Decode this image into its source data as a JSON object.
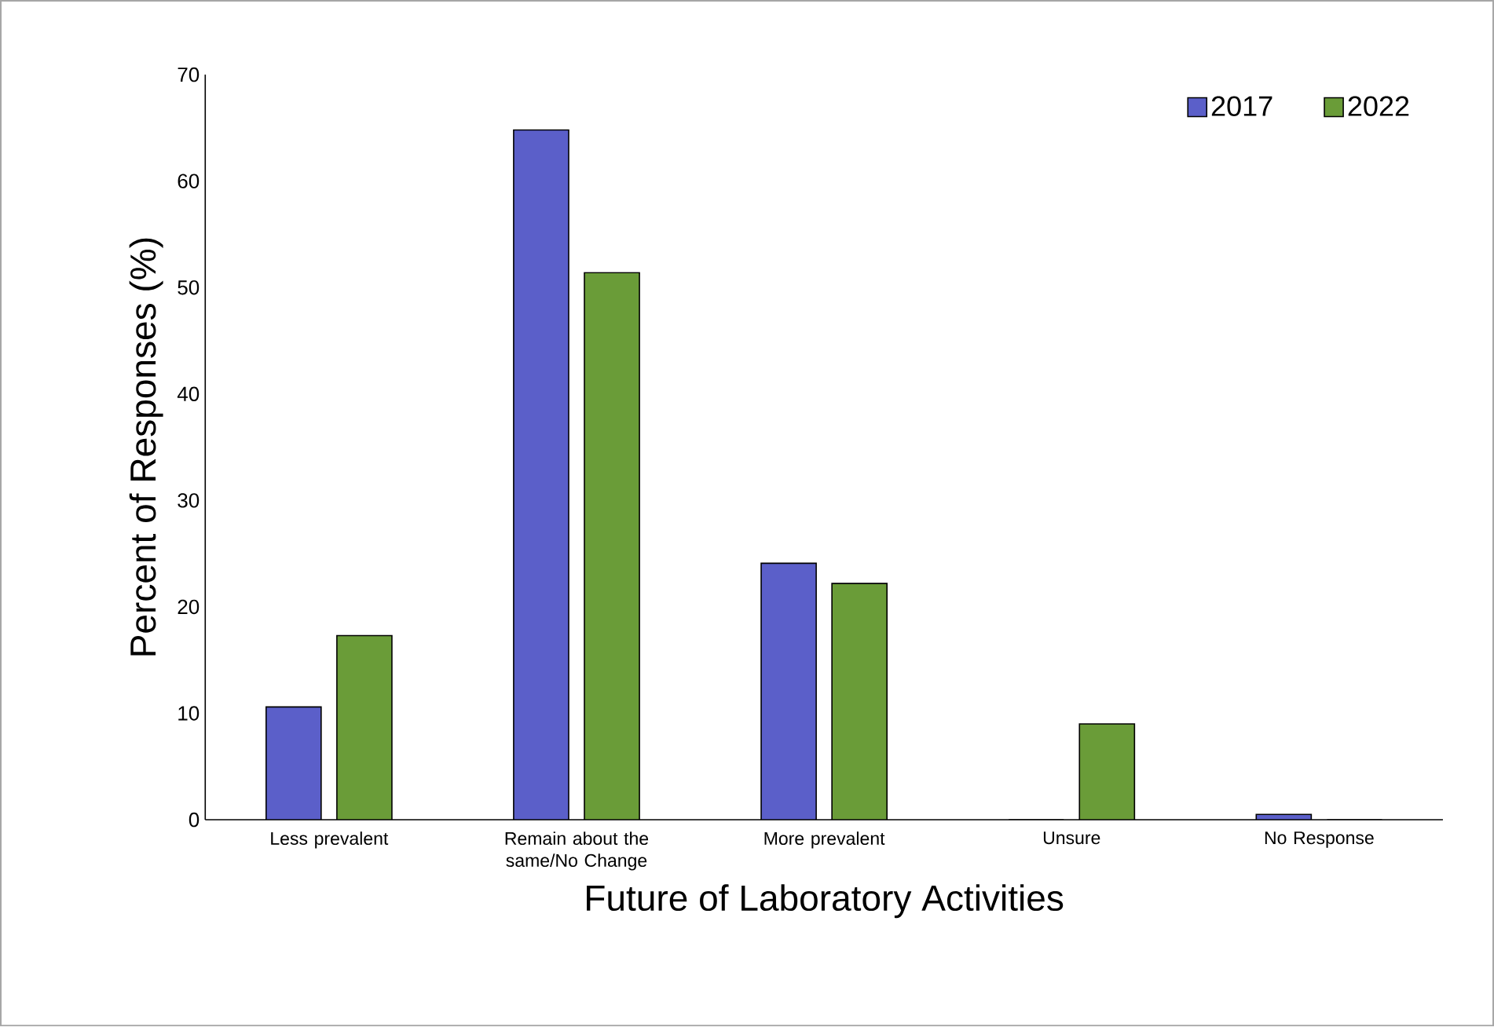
{
  "chart_data": {
    "type": "bar",
    "xlabel": "Future of Laboratory Activities",
    "ylabel": "Percent of Responses (%)",
    "categories": [
      "Less prevalent",
      "Remain about the same/No Change",
      "More prevalent",
      "Unsure",
      "No Response"
    ],
    "series": [
      {
        "name": "2017",
        "color": "#5b5fc9",
        "values": [
          10.6,
          64.8,
          24.1,
          0,
          0.5
        ]
      },
      {
        "name": "2022",
        "color": "#6a9c38",
        "values": [
          17.3,
          51.4,
          22.2,
          9.0,
          0
        ]
      }
    ],
    "ylim": [
      0,
      70
    ],
    "yticks": [
      0,
      10,
      20,
      30,
      40,
      50,
      60,
      70
    ],
    "legend": "top right",
    "grid": false
  }
}
